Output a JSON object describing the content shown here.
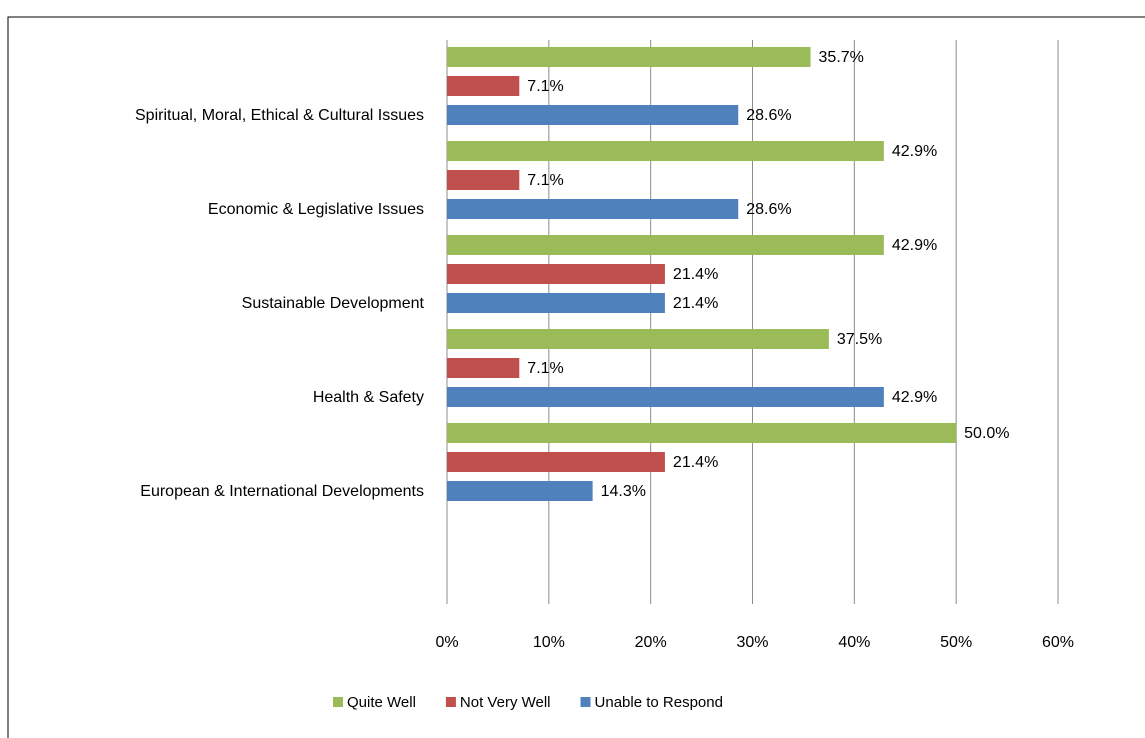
{
  "chart_data": {
    "type": "bar",
    "orientation": "horizontal",
    "categories": [
      "Spiritual, Moral, Ethical & Cultural Issues",
      "Economic & Legislative Issues",
      "Sustainable Development",
      "Health & Safety",
      "European & International Developments"
    ],
    "series": [
      {
        "name": "Quite Well",
        "color": "#9bbb59",
        "values": [
          35.7,
          42.9,
          42.9,
          37.5,
          50.0
        ],
        "value_labels": [
          "35.7%",
          "42.9%",
          "42.9%",
          "37.5%",
          "50.0%"
        ]
      },
      {
        "name": "Not Very Well",
        "color": "#c0504d",
        "values": [
          7.1,
          7.1,
          21.4,
          7.1,
          21.4
        ],
        "value_labels": [
          "7.1%",
          "7.1%",
          "21.4%",
          "7.1%",
          "21.4%"
        ]
      },
      {
        "name": "Unable to Respond",
        "color": "#4f81bd",
        "values": [
          28.6,
          28.6,
          21.4,
          42.9,
          14.3
        ],
        "value_labels": [
          "28.6%",
          "28.6%",
          "21.4%",
          "42.9%",
          "14.3%"
        ]
      }
    ],
    "xlim": [
      0,
      60
    ],
    "xticks": [
      {
        "value": 0,
        "label": "0%"
      },
      {
        "value": 10,
        "label": "10%"
      },
      {
        "value": 20,
        "label": "20%"
      },
      {
        "value": 30,
        "label": "30%"
      },
      {
        "value": 40,
        "label": "40%"
      },
      {
        "value": 50,
        "label": "50%"
      },
      {
        "value": 60,
        "label": "60%"
      }
    ],
    "grid": true,
    "legend": "bottom"
  }
}
